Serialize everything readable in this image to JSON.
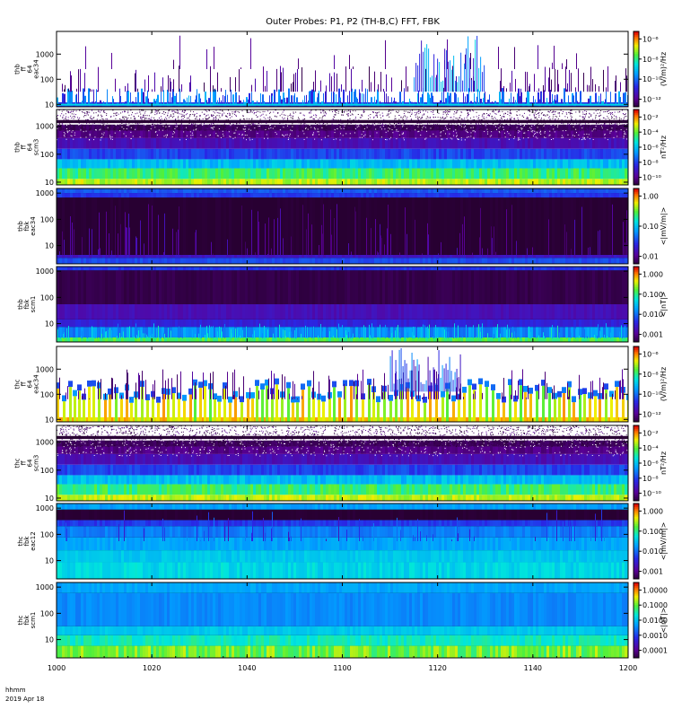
{
  "figure": {
    "title": "Outer Probes: P1, P2 (TH-B,C) FFT, FBK",
    "footer_time_label": "hhmm",
    "footer_date_label": "2019 Apr 18"
  },
  "chart_data": {
    "type": "heatmap",
    "x_axis": {
      "range": [
        "10:00",
        "12:00"
      ],
      "tick_labels": [
        "1000",
        "1020",
        "1040",
        "1100",
        "1120",
        "1140",
        "1200"
      ]
    },
    "panels": [
      {
        "id": "thb-ff-eac34",
        "ylabel": [
          "thb",
          "ff",
          "64",
          "eac34"
        ],
        "y_range_hz": [
          8,
          8000
        ],
        "y_scale": "log",
        "y_ticks": [
          "1000",
          "100",
          "10"
        ],
        "colorbar_label": "(V/m)²/Hz",
        "colorbar_ticks": [
          "10⁻⁶",
          "10⁻⁸",
          "10⁻¹⁰",
          "10⁻¹²"
        ],
        "colorbar_range": [
          "1e-13",
          "1e-5"
        ],
        "style": "sparse_bursts",
        "colormap": "rainbow",
        "background": "#ffffff",
        "burst_events": [
          {
            "start": "11:15",
            "end": "11:30",
            "hz_top": 5000
          }
        ]
      },
      {
        "id": "thb-ff-scm3",
        "ylabel": [
          "thb",
          "ff",
          "64",
          "scm3"
        ],
        "y_range_hz": [
          8,
          4000
        ],
        "y_scale": "log",
        "y_ticks": [
          "1000",
          "100",
          "10"
        ],
        "colorbar_label": "nT²/Hz",
        "colorbar_ticks": [
          "10⁻²",
          "10⁻⁴",
          "10⁻⁶",
          "10⁻⁸",
          "10⁻¹⁰"
        ],
        "colorbar_range": [
          "1e-11",
          "1e-2"
        ],
        "style": "layered_speckle",
        "colormap": "rainbow",
        "background": "#ffffff"
      },
      {
        "id": "thb-fbk-eac34",
        "ylabel": [
          "thb",
          "fbk",
          "eac34"
        ],
        "y_range_hz": [
          2,
          1500
        ],
        "y_scale": "log",
        "y_ticks": [
          "1000",
          "100",
          "10"
        ],
        "colorbar_label": "<|mV/m|>",
        "colorbar_ticks": [
          "1.00",
          "0.10",
          "0.01"
        ],
        "colorbar_range": [
          "0.005",
          "2"
        ],
        "style": "dark_bands",
        "colormap": "rainbow",
        "background": "#000000"
      },
      {
        "id": "thb-fbk-scm1",
        "ylabel": [
          "thb",
          "fbk",
          "scm1"
        ],
        "y_range_hz": [
          2,
          1500
        ],
        "y_scale": "log",
        "y_ticks": [
          "1000",
          "100",
          "10"
        ],
        "colorbar_label": "<|nT|>",
        "colorbar_ticks": [
          "1.000",
          "0.100",
          "0.010",
          "0.001"
        ],
        "colorbar_range": [
          "0.0005",
          "2"
        ],
        "style": "dark_bands_low_active",
        "colormap": "rainbow",
        "background": "#000000"
      },
      {
        "id": "thc-ff-eac34",
        "ylabel": [
          "thc",
          "ff",
          "64",
          "eac34"
        ],
        "y_range_hz": [
          8,
          8000
        ],
        "y_scale": "log",
        "y_ticks": [
          "1000",
          "100",
          "10"
        ],
        "colorbar_label": "(V/m)²/Hz",
        "colorbar_ticks": [
          "10⁻⁶",
          "10⁻⁸",
          "10⁻¹⁰",
          "10⁻¹²"
        ],
        "colorbar_range": [
          "1e-13",
          "1e-5"
        ],
        "style": "periodic_spikes",
        "colormap": "rainbow",
        "background": "#ffffff",
        "burst_events": [
          {
            "start": "11:10",
            "end": "11:25",
            "hz_top": 6000
          }
        ]
      },
      {
        "id": "thc-ff-scm3",
        "ylabel": [
          "thc",
          "ff",
          "64",
          "scm3"
        ],
        "y_range_hz": [
          8,
          4000
        ],
        "y_scale": "log",
        "y_ticks": [
          "1000",
          "100",
          "10"
        ],
        "colorbar_label": "nT²/Hz",
        "colorbar_ticks": [
          "10⁻²",
          "10⁻⁴",
          "10⁻⁶",
          "10⁻⁸",
          "10⁻¹⁰"
        ],
        "colorbar_range": [
          "1e-11",
          "1e-2"
        ],
        "style": "layered_speckle",
        "colormap": "rainbow",
        "background": "#ffffff"
      },
      {
        "id": "thc-fbk-eac12",
        "ylabel": [
          "thc",
          "fbk",
          "eac12"
        ],
        "y_range_hz": [
          2,
          1500
        ],
        "y_scale": "log",
        "y_ticks": [
          "1000",
          "100",
          "10"
        ],
        "colorbar_label": "<|mV/m|>",
        "colorbar_ticks": [
          "1.000",
          "0.100",
          "0.010",
          "0.001"
        ],
        "colorbar_range": [
          "0.0005",
          "2"
        ],
        "style": "cyan_dark_top",
        "colormap": "rainbow",
        "background": "#000000"
      },
      {
        "id": "thc-fbk-scm1",
        "ylabel": [
          "thc",
          "fbk",
          "scm1"
        ],
        "y_range_hz": [
          2,
          1500
        ],
        "y_scale": "log",
        "y_ticks": [
          "1000",
          "100",
          "10"
        ],
        "colorbar_label": "<|nT|>",
        "colorbar_ticks": [
          "1.0000",
          "0.1000",
          "0.0100",
          "0.0010",
          "0.0001"
        ],
        "colorbar_range": [
          "0.00005",
          "2"
        ],
        "style": "blue_green_bands",
        "colormap": "rainbow",
        "background": "#000000"
      }
    ]
  }
}
